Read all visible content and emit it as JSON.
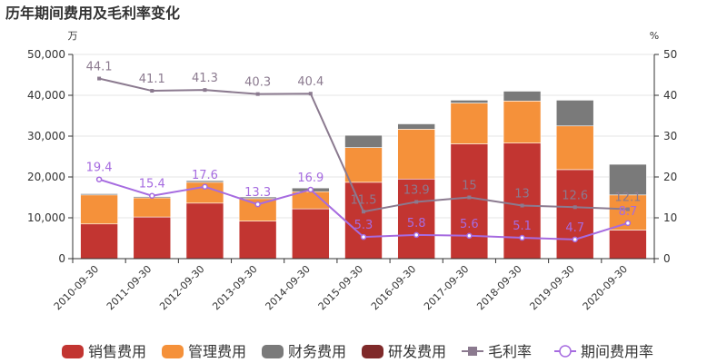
{
  "chart_data": {
    "type": "bar",
    "title": "历年期间费用及毛利率变化",
    "left_unit": "万",
    "right_unit": "%",
    "categories": [
      "2010-09-30",
      "2011-09-30",
      "2012-09-30",
      "2013-09-30",
      "2014-09-30",
      "2015-09-30",
      "2016-09-30",
      "2017-09-30",
      "2018-09-30",
      "2019-09-30",
      "2020-09-30"
    ],
    "ylim_left": [
      0,
      50000
    ],
    "yticks_left": [
      "0",
      "10,000",
      "20,000",
      "30,000",
      "40,000",
      "50,000"
    ],
    "ylim_right": [
      0,
      50
    ],
    "yticks_right": [
      "0",
      "10",
      "20",
      "30",
      "40",
      "50"
    ],
    "grid": true,
    "legend_position": "bottom",
    "bar_series": [
      {
        "name": "销售费用",
        "color": "#c23531",
        "values": [
          8500,
          10200,
          13600,
          9200,
          12200,
          18700,
          19500,
          28100,
          28300,
          21800,
          7000
        ]
      },
      {
        "name": "管理费用",
        "color": "#f5913a",
        "values": [
          7100,
          4700,
          5100,
          5500,
          4200,
          8500,
          12200,
          10000,
          10300,
          10700,
          8600
        ]
      },
      {
        "name": "财务费用",
        "color": "#7a7a7a",
        "values": [
          300,
          300,
          400,
          400,
          900,
          3000,
          1300,
          700,
          2400,
          6300,
          7500
        ]
      },
      {
        "name": "研发费用",
        "color": "#7f2a2a",
        "values": [
          0,
          0,
          0,
          0,
          0,
          0,
          0,
          0,
          0,
          0,
          0
        ]
      }
    ],
    "line_series": [
      {
        "name": "毛利率",
        "color": "#8b7a8f",
        "marker": "square",
        "values": [
          44.1,
          41.1,
          41.3,
          40.3,
          40.4,
          11.5,
          13.9,
          15,
          13,
          12.6,
          12.1
        ],
        "labels": [
          "44.1",
          "41.1",
          "41.3",
          "40.3",
          "40.4",
          "11.5",
          "13.9",
          "15",
          "13",
          "12.6",
          "12.1"
        ]
      },
      {
        "name": "期间费用率",
        "color": "#a66be0",
        "marker": "circle",
        "values": [
          19.4,
          15.4,
          17.6,
          13.3,
          16.9,
          5.3,
          5.8,
          5.6,
          5.1,
          4.7,
          8.7
        ],
        "labels": [
          "19.4",
          "15.4",
          "17.6",
          "13.3",
          "16.9",
          "5.3",
          "5.8",
          "5.6",
          "5.1",
          "4.7",
          "8.7"
        ]
      }
    ]
  }
}
